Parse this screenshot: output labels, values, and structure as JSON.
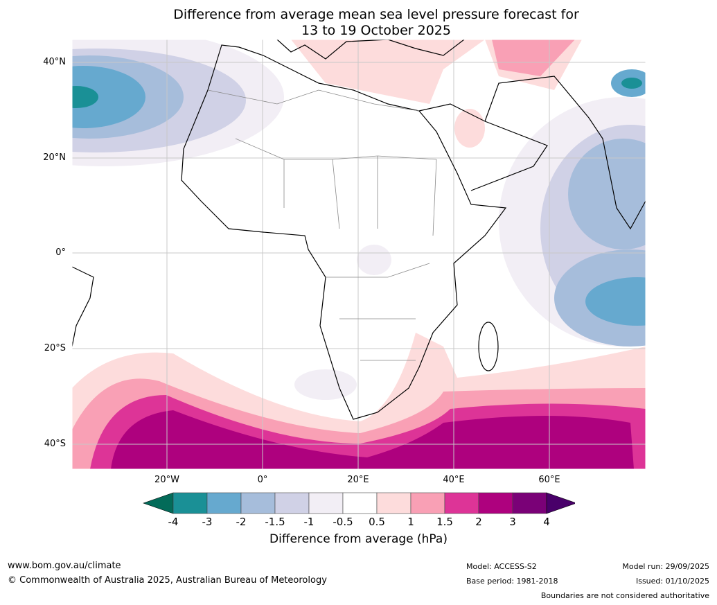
{
  "title": {
    "line1": "Difference from average mean sea level pressure forecast for",
    "line2": "13 to 19 October 2025"
  },
  "axes": {
    "lat_labels": [
      "40°N",
      "20°N",
      "0°",
      "20°S",
      "40°S"
    ],
    "lon_labels": [
      "20°W",
      "0°",
      "20°E",
      "40°E",
      "60°E"
    ]
  },
  "colorbar": {
    "label": "Difference from average (hPa)",
    "ticks": [
      "-4",
      "-3",
      "-2",
      "-1.5",
      "-1",
      "-0.5",
      "0.5",
      "1",
      "1.5",
      "2",
      "3",
      "4"
    ],
    "colors": [
      "#1a9096",
      "#66a9cf",
      "#a6bddb",
      "#d0d1e6",
      "#f2eef5",
      "#ffffff",
      "#fddcdc",
      "#f9a0b5",
      "#dd3497",
      "#ae017e",
      "#7a0177"
    ],
    "extend_low": "#036b59",
    "extend_high": "#49006a"
  },
  "footer": {
    "url": "www.bom.gov.au/climate",
    "copyright": "© Commonwealth of Australia 2025, Australian Bureau of Meteorology",
    "model": "Model: ACCESS-S2",
    "base_period": "Base period: 1981-2018",
    "model_run": "Model run: 29/09/2025",
    "issued": "Issued: 01/10/2025",
    "disclaimer": "Boundaries are not considered authoritative"
  }
}
